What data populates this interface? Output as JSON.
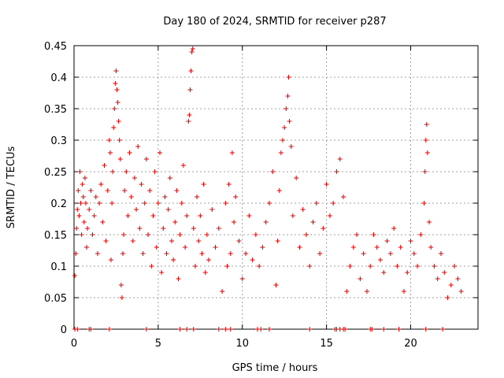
{
  "chart_data": {
    "type": "scatter",
    "title": "Day 180 of 2024, SRMTID for receiver p287",
    "xlabel": "GPS time / hours",
    "ylabel": "SRMTID / TECUs",
    "xlim": [
      0,
      24
    ],
    "ylim": [
      0,
      0.45
    ],
    "x_ticks": [
      0,
      5,
      10,
      15,
      20
    ],
    "x_tick_labels": [
      "0",
      "5",
      "10",
      "15",
      "20"
    ],
    "y_ticks": [
      0,
      0.05,
      0.1,
      0.15,
      0.2,
      0.25,
      0.3,
      0.35,
      0.4,
      0.45
    ],
    "y_tick_labels": [
      "0",
      "0.05",
      "0.1",
      "0.15",
      "0.2",
      "0.25",
      "0.3",
      "0.35",
      "0.4",
      "0.45"
    ],
    "grid": true,
    "marker": "+",
    "series": [
      {
        "name": "SRMTID",
        "color": "#e00000",
        "points": [
          [
            0.05,
            0.085
          ],
          [
            0.1,
            0.12
          ],
          [
            0.15,
            0.16
          ],
          [
            0.2,
            0.19
          ],
          [
            0.25,
            0.22
          ],
          [
            0.3,
            0.18
          ],
          [
            0.35,
            0.25
          ],
          [
            0.4,
            0.2
          ],
          [
            0.45,
            0.15
          ],
          [
            0.5,
            0.23
          ],
          [
            0.55,
            0.21
          ],
          [
            0.6,
            0.17
          ],
          [
            0.65,
            0.24
          ],
          [
            0.7,
            0.2
          ],
          [
            0.75,
            0.13
          ],
          [
            0.8,
            0.16
          ],
          [
            0.9,
            0.19
          ],
          [
            1.0,
            0.22
          ],
          [
            1.1,
            0.15
          ],
          [
            1.2,
            0.18
          ],
          [
            1.3,
            0.21
          ],
          [
            1.4,
            0.12
          ],
          [
            1.5,
            0.2
          ],
          [
            1.6,
            0.23
          ],
          [
            1.7,
            0.17
          ],
          [
            1.8,
            0.26
          ],
          [
            1.9,
            0.14
          ],
          [
            2.0,
            0.22
          ],
          [
            2.1,
            0.3
          ],
          [
            2.15,
            0.28
          ],
          [
            2.2,
            0.11
          ],
          [
            2.25,
            0.2
          ],
          [
            2.3,
            0.25
          ],
          [
            2.35,
            0.32
          ],
          [
            2.4,
            0.35
          ],
          [
            2.45,
            0.39
          ],
          [
            2.5,
            0.41
          ],
          [
            2.55,
            0.38
          ],
          [
            2.6,
            0.36
          ],
          [
            2.65,
            0.33
          ],
          [
            2.7,
            0.3
          ],
          [
            2.75,
            0.27
          ],
          [
            2.8,
            0.07
          ],
          [
            2.85,
            0.05
          ],
          [
            2.9,
            0.12
          ],
          [
            2.95,
            0.15
          ],
          [
            3.0,
            0.22
          ],
          [
            3.1,
            0.25
          ],
          [
            3.2,
            0.18
          ],
          [
            3.3,
            0.28
          ],
          [
            3.4,
            0.21
          ],
          [
            3.5,
            0.14
          ],
          [
            3.6,
            0.24
          ],
          [
            3.7,
            0.19
          ],
          [
            3.8,
            0.29
          ],
          [
            3.9,
            0.16
          ],
          [
            4.0,
            0.23
          ],
          [
            4.1,
            0.12
          ],
          [
            4.2,
            0.2
          ],
          [
            4.3,
            0.27
          ],
          [
            4.4,
            0.15
          ],
          [
            4.5,
            0.22
          ],
          [
            4.6,
            0.1
          ],
          [
            4.7,
            0.18
          ],
          [
            4.8,
            0.25
          ],
          [
            4.9,
            0.13
          ],
          [
            5.0,
            0.2
          ],
          [
            5.1,
            0.28
          ],
          [
            5.2,
            0.09
          ],
          [
            5.3,
            0.16
          ],
          [
            5.4,
            0.21
          ],
          [
            5.5,
            0.12
          ],
          [
            5.6,
            0.19
          ],
          [
            5.7,
            0.24
          ],
          [
            5.8,
            0.14
          ],
          [
            5.9,
            0.11
          ],
          [
            6.0,
            0.17
          ],
          [
            6.1,
            0.22
          ],
          [
            6.2,
            0.08
          ],
          [
            6.3,
            0.15
          ],
          [
            6.4,
            0.2
          ],
          [
            6.5,
            0.26
          ],
          [
            6.6,
            0.13
          ],
          [
            6.7,
            0.18
          ],
          [
            6.8,
            0.33
          ],
          [
            6.85,
            0.34
          ],
          [
            6.9,
            0.38
          ],
          [
            6.95,
            0.41
          ],
          [
            7.0,
            0.44
          ],
          [
            7.05,
            0.445
          ],
          [
            7.1,
            0.16
          ],
          [
            7.2,
            0.1
          ],
          [
            7.3,
            0.21
          ],
          [
            7.4,
            0.14
          ],
          [
            7.5,
            0.18
          ],
          [
            7.6,
            0.12
          ],
          [
            7.7,
            0.23
          ],
          [
            7.8,
            0.09
          ],
          [
            7.9,
            0.15
          ],
          [
            8.0,
            0.11
          ],
          [
            8.2,
            0.19
          ],
          [
            8.4,
            0.13
          ],
          [
            8.6,
            0.16
          ],
          [
            8.8,
            0.06
          ],
          [
            9.0,
            0.2
          ],
          [
            9.1,
            0.1
          ],
          [
            9.2,
            0.23
          ],
          [
            9.3,
            0.12
          ],
          [
            9.4,
            0.28
          ],
          [
            9.5,
            0.17
          ],
          [
            9.6,
            0.21
          ],
          [
            9.8,
            0.14
          ],
          [
            10.0,
            0.08
          ],
          [
            10.2,
            0.12
          ],
          [
            10.4,
            0.18
          ],
          [
            10.6,
            0.11
          ],
          [
            10.8,
            0.15
          ],
          [
            11.0,
            0.1
          ],
          [
            11.2,
            0.13
          ],
          [
            11.4,
            0.17
          ],
          [
            11.6,
            0.2
          ],
          [
            11.8,
            0.25
          ],
          [
            12.0,
            0.07
          ],
          [
            12.1,
            0.14
          ],
          [
            12.2,
            0.22
          ],
          [
            12.3,
            0.28
          ],
          [
            12.4,
            0.3
          ],
          [
            12.5,
            0.32
          ],
          [
            12.6,
            0.35
          ],
          [
            12.7,
            0.37
          ],
          [
            12.75,
            0.4
          ],
          [
            12.8,
            0.33
          ],
          [
            12.9,
            0.29
          ],
          [
            13.0,
            0.18
          ],
          [
            13.2,
            0.24
          ],
          [
            13.4,
            0.13
          ],
          [
            13.6,
            0.19
          ],
          [
            13.8,
            0.15
          ],
          [
            14.0,
            0.1
          ],
          [
            14.2,
            0.17
          ],
          [
            14.4,
            0.2
          ],
          [
            14.6,
            0.12
          ],
          [
            14.8,
            0.16
          ],
          [
            15.0,
            0.23
          ],
          [
            15.2,
            0.18
          ],
          [
            15.4,
            0.2
          ],
          [
            15.6,
            0.25
          ],
          [
            15.8,
            0.27
          ],
          [
            16.0,
            0.21
          ],
          [
            16.2,
            0.06
          ],
          [
            16.4,
            0.1
          ],
          [
            16.6,
            0.13
          ],
          [
            16.8,
            0.15
          ],
          [
            17.0,
            0.08
          ],
          [
            17.2,
            0.12
          ],
          [
            17.4,
            0.06
          ],
          [
            17.6,
            0.1
          ],
          [
            17.8,
            0.15
          ],
          [
            18.0,
            0.13
          ],
          [
            18.2,
            0.11
          ],
          [
            18.4,
            0.09
          ],
          [
            18.6,
            0.14
          ],
          [
            18.8,
            0.12
          ],
          [
            19.0,
            0.16
          ],
          [
            19.2,
            0.1
          ],
          [
            19.4,
            0.13
          ],
          [
            19.6,
            0.06
          ],
          [
            19.8,
            0.09
          ],
          [
            20.0,
            0.14
          ],
          [
            20.2,
            0.12
          ],
          [
            20.4,
            0.1
          ],
          [
            20.6,
            0.15
          ],
          [
            20.8,
            0.2
          ],
          [
            20.85,
            0.25
          ],
          [
            20.9,
            0.3
          ],
          [
            20.95,
            0.325
          ],
          [
            21.0,
            0.28
          ],
          [
            21.1,
            0.17
          ],
          [
            21.2,
            0.13
          ],
          [
            21.4,
            0.1
          ],
          [
            21.6,
            0.08
          ],
          [
            21.8,
            0.12
          ],
          [
            22.0,
            0.09
          ],
          [
            22.2,
            0.05
          ],
          [
            22.4,
            0.07
          ],
          [
            22.6,
            0.1
          ],
          [
            22.8,
            0.08
          ],
          [
            23.0,
            0.06
          ]
        ],
        "zero_points": [
          0.05,
          0.2,
          0.9,
          1.0,
          2.1,
          4.3,
          6.3,
          6.7,
          7.1,
          8.6,
          9.0,
          9.3,
          10.9,
          11.1,
          11.6,
          14.0,
          15.5,
          15.6,
          15.8,
          16.0,
          16.1,
          17.6,
          17.7,
          18.4,
          19.3,
          20.9,
          21.9
        ]
      }
    ]
  }
}
